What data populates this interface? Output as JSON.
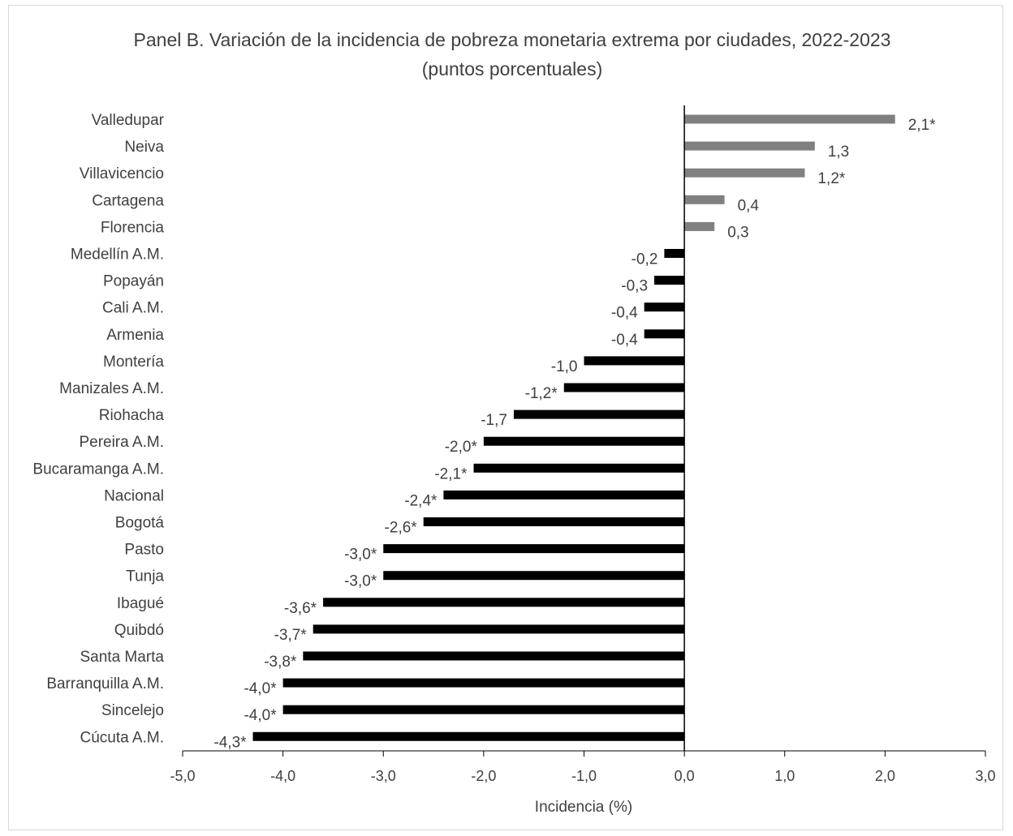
{
  "chart_data": {
    "type": "bar",
    "orientation": "horizontal",
    "title": "Panel B. Variación de la incidencia de pobreza monetaria extrema por ciudades, 2022-2023 (puntos porcentuales)",
    "xlabel": "Incidencia (%)",
    "ylabel": "",
    "xlim": [
      -5.0,
      3.0
    ],
    "xticks": [
      "-5,0",
      "-4,0",
      "-3,0",
      "-2,0",
      "-1,0",
      "0,0",
      "1,0",
      "2,0",
      "3,0"
    ],
    "grid": false,
    "colors": {
      "positive": "#808080",
      "negative": "#000000"
    },
    "categories": [
      "Valledupar",
      "Neiva",
      "Villavicencio",
      "Cartagena",
      "Florencia",
      "Medellín A.M.",
      "Popayán",
      "Cali A.M.",
      "Armenia",
      "Montería",
      "Manizales A.M.",
      "Riohacha",
      "Pereira A.M.",
      "Bucaramanga A.M.",
      "Nacional",
      "Bogotá",
      "Pasto",
      "Tunja",
      "Ibagué",
      "Quibdó",
      "Santa Marta",
      "Barranquilla A.M.",
      "Sincelejo",
      "Cúcuta A.M."
    ],
    "values": [
      2.1,
      1.3,
      1.2,
      0.4,
      0.3,
      -0.2,
      -0.3,
      -0.4,
      -0.4,
      -1.0,
      -1.2,
      -1.7,
      -2.0,
      -2.1,
      -2.4,
      -2.6,
      -3.0,
      -3.0,
      -3.6,
      -3.7,
      -3.8,
      -4.0,
      -4.0,
      -4.3
    ],
    "labels": [
      "2,1*",
      "1,3",
      "1,2*",
      "0,4",
      "0,3",
      "-0,2",
      "-0,3",
      "-0,4",
      "-0,4",
      "-1,0",
      "-1,2*",
      "-1,7",
      "-2,0*",
      "-2,1*",
      "-2,4*",
      "-2,6*",
      "-3,0*",
      "-3,0*",
      "-3,6*",
      "-3,7*",
      "-3,8*",
      "-4,0*",
      "-4,0*",
      "-4,3*"
    ]
  }
}
